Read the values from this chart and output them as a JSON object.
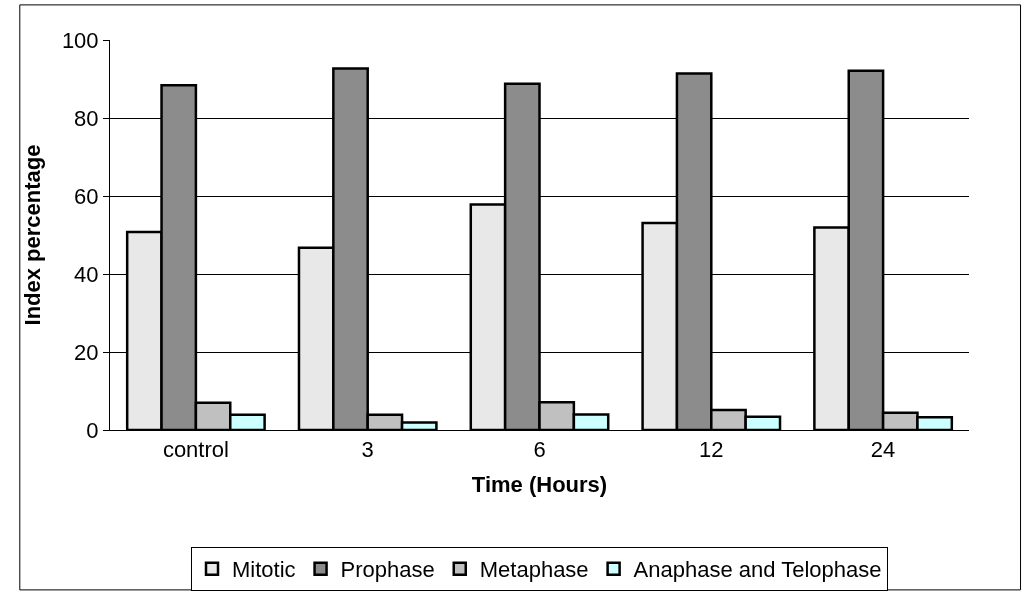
{
  "chart_data": {
    "type": "bar",
    "xlabel": "Time (Hours)",
    "ylabel": "Index percentage",
    "categories": [
      "control",
      "3",
      "6",
      "12",
      "24"
    ],
    "series": [
      {
        "name": "Mitotic",
        "color": "#e8e8e8",
        "values": [
          50.8,
          46.7,
          57.8,
          53.1,
          51.9
        ]
      },
      {
        "name": "Prophase",
        "color": "#8c8c8c",
        "values": [
          88.4,
          92.7,
          88.8,
          91.4,
          92.1
        ]
      },
      {
        "name": "Metaphase",
        "color": "#c0c0c0",
        "values": [
          7.0,
          3.9,
          7.1,
          5.1,
          4.4
        ]
      },
      {
        "name": "Anaphase and Telophase",
        "color": "#ccffff",
        "values": [
          3.9,
          1.9,
          4.0,
          3.4,
          3.3
        ]
      }
    ],
    "ylim": [
      0,
      100
    ],
    "yticks": [
      0,
      20,
      40,
      60,
      80,
      100
    ],
    "grid": "y",
    "legend": "bottom"
  }
}
